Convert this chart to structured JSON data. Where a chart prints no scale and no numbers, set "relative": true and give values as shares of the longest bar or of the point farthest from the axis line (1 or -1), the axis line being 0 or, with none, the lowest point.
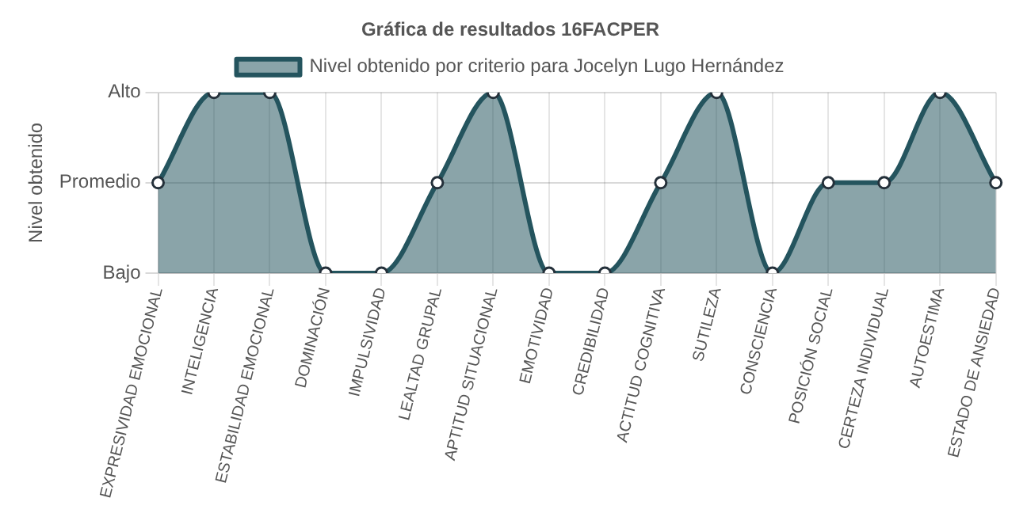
{
  "chart_data": {
    "type": "area",
    "title": "Gráfica de resultados 16FACPER",
    "ylabel": "Nivel obtenido",
    "relative": true,
    "categories": [
      "EXPRESIVIDAD EMOCIONAL",
      "INTELIGENCIA",
      "ESTABILIDAD EMOCIONAL",
      "DOMINACIÓN",
      "IMPULSIVIDAD",
      "LEALTAD GRUPAL",
      "APTITUD SITUACIONAL",
      "EMOTIVIDAD",
      "CREDIBILIDAD",
      "ACTITUD COGNITIVA",
      "SUTILEZA",
      "CONSCIENCIA",
      "POSICIÓN SOCIAL",
      "CERTEZA INDIVIDUAL",
      "AUTOESTIMA",
      "ESTADO DE ANSIEDAD"
    ],
    "y_categories": [
      "Alto",
      "Promedio",
      "Bajo"
    ],
    "series": [
      {
        "name": "Nivel obtenido por criterio para Jocelyn Lugo Hernández",
        "color": "#24545e",
        "values": [
          0.5,
          1,
          1,
          0,
          0,
          0.5,
          1,
          0,
          0,
          0.5,
          1,
          0,
          0.5,
          0.5,
          1,
          0.5
        ]
      }
    ],
    "grid": true,
    "legend": "top",
    "marker": "circle"
  }
}
